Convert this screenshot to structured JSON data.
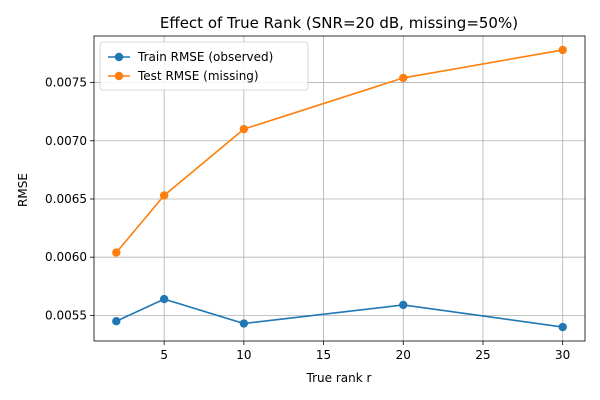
{
  "chart_data": {
    "type": "line",
    "title": "Effect of True Rank (SNR=20 dB, missing=50%)",
    "xlabel": "True rank r",
    "ylabel": "RMSE",
    "x": [
      2,
      5,
      10,
      20,
      30
    ],
    "xlim": [
      0.6,
      31.4
    ],
    "ylim": [
      0.00528,
      0.0079
    ],
    "xticks": [
      5,
      10,
      15,
      20,
      25,
      30
    ],
    "yticks": [
      0.0055,
      0.006,
      0.0065,
      0.007,
      0.0075
    ],
    "ytick_labels": [
      "0.0055",
      "0.0060",
      "0.0065",
      "0.0070",
      "0.0075"
    ],
    "grid": true,
    "legend_position": "top-left",
    "series": [
      {
        "name": "Train RMSE (observed)",
        "color": "#1f77b4",
        "values": [
          0.00545,
          0.00564,
          0.00543,
          0.00559,
          0.0054
        ]
      },
      {
        "name": "Test RMSE (missing)",
        "color": "#ff7f0e",
        "values": [
          0.00604,
          0.00653,
          0.0071,
          0.00754,
          0.00778
        ]
      }
    ]
  }
}
